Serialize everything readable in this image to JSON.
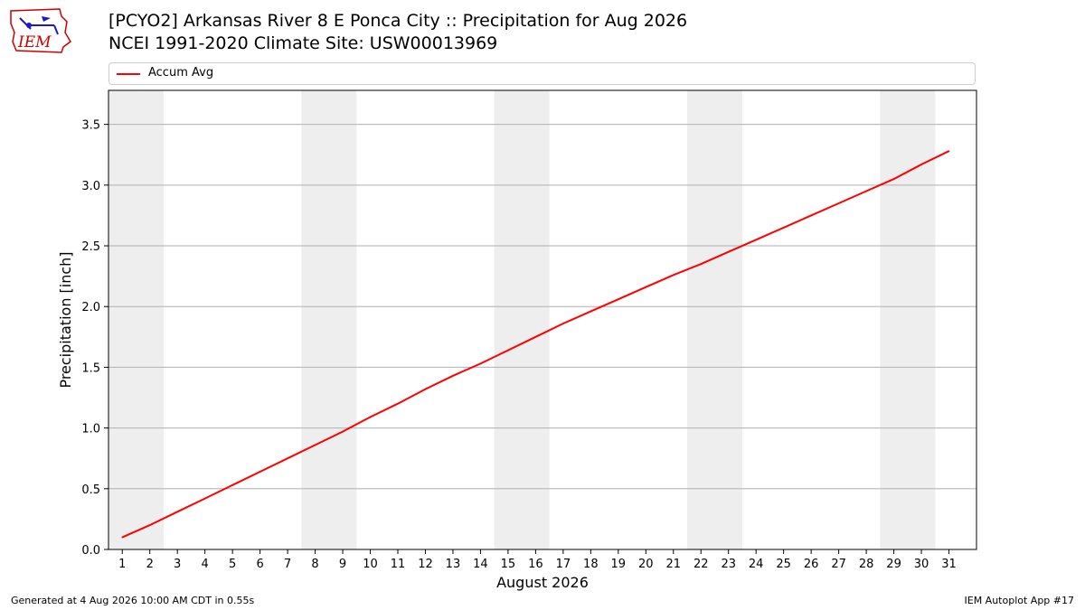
{
  "header": {
    "title_line1": "[PCYO2] Arkansas River 8 E Ponca City :: Precipitation for Aug 2026",
    "title_line2": "NCEI 1991-2020 Climate Site: USW00013969",
    "logo_text": "IEM"
  },
  "footer": {
    "left": "Generated at 4 Aug 2026 10:00 AM CDT in 0.55s",
    "right": "IEM Autoplot App #17"
  },
  "colors": {
    "line": "#ff0000",
    "weekend_band": "#eeeeee",
    "grid": "#b0b0b0"
  },
  "chart_data": {
    "type": "line",
    "title": "[PCYO2] Arkansas River 8 E Ponca City :: Precipitation for Aug 2026",
    "subtitle": "NCEI 1991-2020 Climate Site: USW00013969",
    "xlabel": "August 2026",
    "ylabel": "Precipitation [inch]",
    "xlim": [
      0.5,
      32.0
    ],
    "ylim": [
      0.0,
      3.78
    ],
    "yticks": [
      0.0,
      0.5,
      1.0,
      1.5,
      2.0,
      2.5,
      3.0,
      3.5
    ],
    "ytick_labels": [
      "0.0",
      "0.5",
      "1.0",
      "1.5",
      "2.0",
      "2.5",
      "3.0",
      "3.5"
    ],
    "x": [
      1,
      2,
      3,
      4,
      5,
      6,
      7,
      8,
      9,
      10,
      11,
      12,
      13,
      14,
      15,
      16,
      17,
      18,
      19,
      20,
      21,
      22,
      23,
      24,
      25,
      26,
      27,
      28,
      29,
      30,
      31
    ],
    "xtick_labels": [
      "1",
      "2",
      "3",
      "4",
      "5",
      "6",
      "7",
      "8",
      "9",
      "10",
      "11",
      "12",
      "13",
      "14",
      "15",
      "16",
      "17",
      "18",
      "19",
      "20",
      "21",
      "22",
      "23",
      "24",
      "25",
      "26",
      "27",
      "28",
      "29",
      "30",
      "31"
    ],
    "weekend_bands": [
      [
        0.5,
        2.5
      ],
      [
        7.5,
        9.5
      ],
      [
        14.5,
        16.5
      ],
      [
        21.5,
        23.5
      ],
      [
        28.5,
        30.5
      ]
    ],
    "grid": "horizontal",
    "legend_position": "top",
    "series": [
      {
        "name": "Accum Avg",
        "color": "#ff0000",
        "values": [
          0.1,
          0.2,
          0.31,
          0.42,
          0.53,
          0.64,
          0.75,
          0.86,
          0.97,
          1.09,
          1.2,
          1.32,
          1.43,
          1.53,
          1.64,
          1.75,
          1.86,
          1.96,
          2.06,
          2.16,
          2.26,
          2.35,
          2.45,
          2.55,
          2.65,
          2.75,
          2.85,
          2.95,
          3.05,
          3.17,
          3.28
        ]
      }
    ]
  }
}
